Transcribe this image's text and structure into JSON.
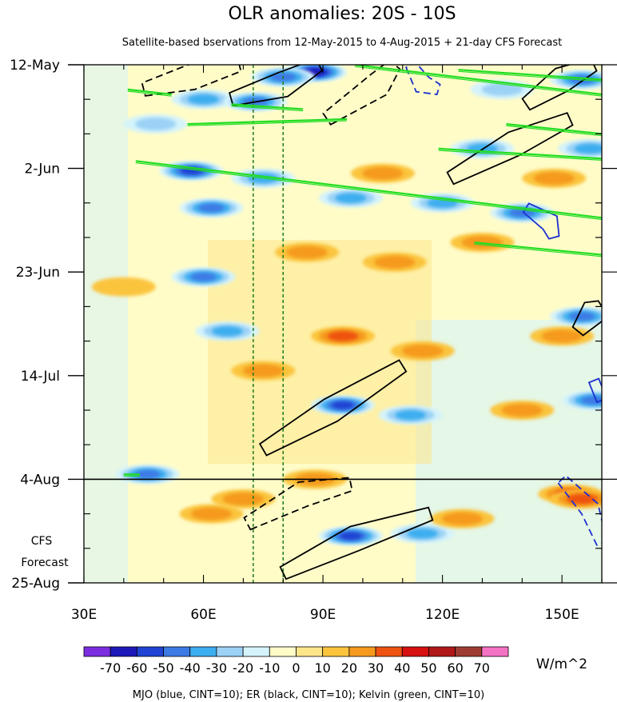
{
  "chart_data": {
    "type": "heatmap",
    "title": "OLR anomalies: 20S - 10S",
    "subtitle": "Satellite-based bservations from 12-May-2015 to 4-Aug-2015 + 21-day CFS Forecast",
    "x_range": [
      30,
      160
    ],
    "x_ticks": [
      {
        "value": 30,
        "label": "30E"
      },
      {
        "value": 60,
        "label": "60E"
      },
      {
        "value": 90,
        "label": "90E"
      },
      {
        "value": 120,
        "label": "120E"
      },
      {
        "value": 150,
        "label": "150E"
      }
    ],
    "y_range_days": [
      0,
      105
    ],
    "y_ticks": [
      {
        "day": 0,
        "label": "12-May"
      },
      {
        "day": 21,
        "label": "2-Jun"
      },
      {
        "day": 42,
        "label": "23-Jun"
      },
      {
        "day": 63,
        "label": "14-Jul"
      },
      {
        "day": 84,
        "label": "4-Aug"
      },
      {
        "day": 105,
        "label": "25-Aug"
      }
    ],
    "forecast_start_day": 84,
    "forecast_label_line1": "CFS",
    "forecast_label_line2": "Forecast",
    "reference_lines_lon": [
      72.5,
      80
    ],
    "colorbar": {
      "unit": "W/m^2",
      "labels": [
        "-70",
        "-60",
        "-50",
        "-40",
        "-30",
        "-20",
        "-10",
        "0",
        "10",
        "20",
        "30",
        "40",
        "50",
        "60",
        "70"
      ],
      "colors": [
        "#7c2de0",
        "#1c18b8",
        "#1f43d2",
        "#3c7ae4",
        "#3daeef",
        "#9cd2f6",
        "#d4f3fb",
        "#fffcc8",
        "#fde58a",
        "#fbc43c",
        "#f59a1f",
        "#ee5311",
        "#d71010",
        "#b01818",
        "#9e3c32",
        "#f472c4"
      ]
    },
    "anomalies": [
      {
        "lon": 88,
        "day": 1.5,
        "value": -60
      },
      {
        "lon": 80,
        "day": 2.5,
        "value": -40
      },
      {
        "lon": 60,
        "day": 7,
        "value": -30
      },
      {
        "lon": 73,
        "day": 7.5,
        "value": -40
      },
      {
        "lon": 48,
        "day": 12,
        "value": -20
      },
      {
        "lon": 155,
        "day": 3,
        "value": -40
      },
      {
        "lon": 135,
        "day": 5,
        "value": -20
      },
      {
        "lon": 130,
        "day": 17,
        "value": -30
      },
      {
        "lon": 157,
        "day": 17,
        "value": -30
      },
      {
        "lon": 57,
        "day": 21.5,
        "value": -50
      },
      {
        "lon": 75,
        "day": 23,
        "value": -30
      },
      {
        "lon": 62,
        "day": 29,
        "value": -40
      },
      {
        "lon": 97,
        "day": 27,
        "value": -30
      },
      {
        "lon": 120,
        "day": 28,
        "value": -30
      },
      {
        "lon": 140,
        "day": 30,
        "value": -40
      },
      {
        "lon": 60,
        "day": 43,
        "value": -40
      },
      {
        "lon": 155,
        "day": 51,
        "value": -40
      },
      {
        "lon": 66,
        "day": 54,
        "value": -30
      },
      {
        "lon": 95,
        "day": 69,
        "value": -50
      },
      {
        "lon": 112,
        "day": 71,
        "value": -30
      },
      {
        "lon": 158,
        "day": 68,
        "value": -40
      },
      {
        "lon": 46,
        "day": 83,
        "value": -40
      },
      {
        "lon": 97,
        "day": 95.5,
        "value": -50
      },
      {
        "lon": 115,
        "day": 95,
        "value": -30
      },
      {
        "lon": 105,
        "day": 22,
        "value": 20
      },
      {
        "lon": 86,
        "day": 38,
        "value": 20
      },
      {
        "lon": 108,
        "day": 40,
        "value": 20
      },
      {
        "lon": 95,
        "day": 55,
        "value": 30
      },
      {
        "lon": 75,
        "day": 62,
        "value": 20
      },
      {
        "lon": 130,
        "day": 36,
        "value": 20
      },
      {
        "lon": 148,
        "day": 23,
        "value": 20
      },
      {
        "lon": 70,
        "day": 88,
        "value": 20
      },
      {
        "lon": 88,
        "day": 84,
        "value": 20
      },
      {
        "lon": 62,
        "day": 91,
        "value": 20
      },
      {
        "lon": 152,
        "day": 87,
        "value": 30
      },
      {
        "lon": 155,
        "day": 88,
        "value": 30
      },
      {
        "lon": 125,
        "day": 92,
        "value": 20
      },
      {
        "lon": 140,
        "day": 70,
        "value": 20
      },
      {
        "lon": 40,
        "day": 45,
        "value": 10
      },
      {
        "lon": 150,
        "day": 55,
        "value": 20
      },
      {
        "lon": 115,
        "day": 58,
        "value": 20
      }
    ],
    "er_contours": [
      {
        "style": "dashed",
        "points": [
          [
            45,
            5
          ],
          [
            57,
            2.5
          ],
          [
            69,
            0
          ]
        ]
      },
      {
        "style": "dashed",
        "points": [
          [
            91,
            11
          ],
          [
            104,
            4
          ],
          [
            108,
            0
          ]
        ]
      },
      {
        "style": "solid",
        "points": [
          [
            67,
            7
          ],
          [
            80,
            4
          ],
          [
            89,
            0
          ]
        ]
      },
      {
        "style": "solid",
        "points": [
          [
            141,
            8
          ],
          [
            150,
            3
          ],
          [
            158,
            0
          ]
        ]
      },
      {
        "style": "solid",
        "points": [
          [
            122,
            23
          ],
          [
            138,
            16
          ],
          [
            152,
            11
          ]
        ]
      },
      {
        "style": "solid",
        "points": [
          [
            154,
            54
          ],
          [
            158,
            50
          ],
          [
            160,
            49
          ]
        ]
      },
      {
        "style": "solid",
        "points": [
          [
            75,
            78
          ],
          [
            92,
            70
          ],
          [
            110,
            61
          ]
        ]
      },
      {
        "style": "dashed",
        "points": [
          [
            71,
            93
          ],
          [
            85,
            87
          ],
          [
            97,
            85
          ]
        ]
      },
      {
        "style": "solid",
        "points": [
          [
            80,
            103
          ],
          [
            98,
            96
          ],
          [
            117,
            91
          ]
        ]
      }
    ],
    "mjo_contours": [
      {
        "style": "dashed",
        "points": [
          [
            112,
            0
          ],
          [
            115,
            4
          ],
          [
            119,
            5
          ]
        ]
      },
      {
        "style": "solid",
        "points": [
          [
            141,
            29
          ],
          [
            147,
            32
          ],
          [
            148,
            35
          ]
        ]
      },
      {
        "style": "solid",
        "points": [
          [
            158,
            64
          ],
          [
            160,
            68
          ]
        ]
      },
      {
        "style": "dashed",
        "points": [
          [
            150,
            84
          ],
          [
            157,
            90
          ],
          [
            160,
            97
          ]
        ]
      }
    ],
    "kelvin_contours": [
      {
        "points": [
          [
            41,
            5
          ],
          [
            52,
            6
          ]
        ]
      },
      {
        "points": [
          [
            67,
            8
          ],
          [
            85,
            9
          ]
        ]
      },
      {
        "points": [
          [
            56,
            12
          ],
          [
            96,
            11
          ]
        ]
      },
      {
        "points": [
          [
            124,
            1
          ],
          [
            160,
            3
          ]
        ]
      },
      {
        "points": [
          [
            98,
            0
          ],
          [
            160,
            6
          ]
        ]
      },
      {
        "points": [
          [
            136,
            12
          ],
          [
            160,
            14
          ]
        ]
      },
      {
        "points": [
          [
            119,
            17
          ],
          [
            160,
            19
          ]
        ]
      },
      {
        "points": [
          [
            43,
            19.5
          ],
          [
            160,
            31
          ]
        ]
      },
      {
        "points": [
          [
            128,
            36
          ],
          [
            160,
            38.5
          ]
        ]
      },
      {
        "points": [
          [
            40,
            83
          ],
          [
            44,
            83
          ]
        ]
      }
    ],
    "footnote": "MJO (blue, CINT=10); ER (black, CINT=10); Kelvin (green, CINT=10)"
  }
}
